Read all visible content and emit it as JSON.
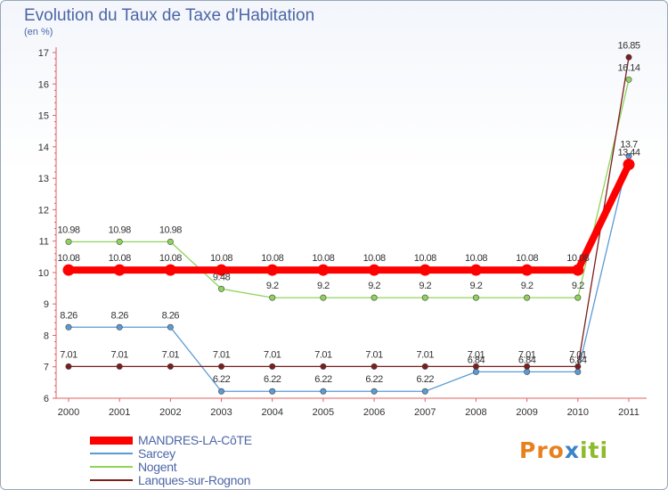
{
  "chart_data": {
    "type": "line",
    "title": "Evolution du Taux de Taxe d'Habitation",
    "ylabel": "(en %)",
    "xlabel": "",
    "ylim": [
      6,
      17
    ],
    "yticks": [
      6,
      7,
      8,
      9,
      10,
      11,
      12,
      13,
      14,
      15,
      16,
      17
    ],
    "categories": [
      "2000",
      "2001",
      "2002",
      "2003",
      "2004",
      "2005",
      "2006",
      "2007",
      "2008",
      "2009",
      "2010",
      "2011"
    ],
    "series": [
      {
        "name": "MANDRES-LA-CôTE",
        "color": "#ff0000",
        "values": [
          10.08,
          10.08,
          10.08,
          10.08,
          10.08,
          10.08,
          10.08,
          10.08,
          10.08,
          10.08,
          10.08,
          13.44
        ],
        "labels": [
          "10.08",
          "10.08",
          "10.08",
          "10.08",
          "10.08",
          "10.08",
          "10.08",
          "10.08",
          "10.08",
          "10.08",
          "10.08",
          "13.44"
        ]
      },
      {
        "name": "Sarcey",
        "color": "#5b9bd5",
        "values": [
          8.26,
          8.26,
          8.26,
          6.22,
          6.22,
          6.22,
          6.22,
          6.22,
          6.84,
          6.84,
          6.84,
          13.7
        ],
        "labels": [
          "8.26",
          "8.26",
          "8.26",
          "6.22",
          "6.22",
          "6.22",
          "6.22",
          "6.22",
          "6.84",
          "6.84",
          "6.84",
          "13.7"
        ]
      },
      {
        "name": "Nogent",
        "color": "#8fd45a",
        "values": [
          10.98,
          10.98,
          10.98,
          9.48,
          9.2,
          9.2,
          9.2,
          9.2,
          9.2,
          9.2,
          9.2,
          16.14
        ],
        "labels": [
          "10.98",
          "10.98",
          "10.98",
          "9.48",
          "9.2",
          "9.2",
          "9.2",
          "9.2",
          "9.2",
          "9.2",
          "9.2",
          "16.14"
        ]
      },
      {
        "name": "Lanques-sur-Rognon",
        "color": "#7b1e1e",
        "values": [
          7.01,
          7.01,
          7.01,
          7.01,
          7.01,
          7.01,
          7.01,
          7.01,
          7.01,
          7.01,
          7.01,
          16.85
        ],
        "labels": [
          "7.01",
          "7.01",
          "7.01",
          "7.01",
          "7.01",
          "7.01",
          "7.01",
          "7.01",
          "7.01",
          "7.01",
          "7.01",
          "16.85"
        ]
      }
    ],
    "legend": "bottom-left",
    "grid": false
  },
  "brand": {
    "p1": "Pro",
    "p2": "x",
    "p3": "iti"
  }
}
